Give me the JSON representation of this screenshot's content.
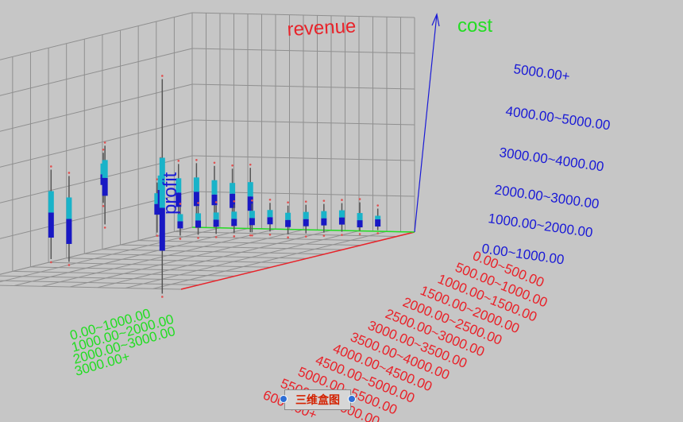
{
  "caption": "三维盒图",
  "chart_data": {
    "type": "box3d",
    "title": "",
    "x_axis": {
      "label": "revenue",
      "color": "#e8232a",
      "ticks": [
        "0.00~500.00",
        "500.00~1000.00",
        "1000.00~1500.00",
        "1500.00~2000.00",
        "2000.00~2500.00",
        "2500.00~3000.00",
        "3000.00~3500.00",
        "3500.00~4000.00",
        "4000.00~4500.00",
        "4500.00~5000.00",
        "5000.00~5500.00",
        "5500.00~6000.00",
        "6000.00+"
      ]
    },
    "y_axis": {
      "label": "cost",
      "color": "#22dd22",
      "ticks": [
        "0.00~1000.00",
        "1000.00~2000.00",
        "2000.00~3000.00",
        "3000.00+"
      ]
    },
    "z_axis": {
      "label": "profit",
      "color": "#1a1ad6",
      "range": [
        0,
        6000
      ],
      "ticks": [
        "0.00~1000.00",
        "1000.00~2000.00",
        "2000.00~3000.00",
        "3000.00~4000.00",
        "4000.00~5000.00",
        "5000.00+"
      ]
    },
    "grid": true,
    "colors": {
      "upper_box": "#19b3c9",
      "lower_box": "#1818c4",
      "whisker": "#555555",
      "outlier": "#e05050"
    },
    "boxes": [
      {
        "revenue": "0.00~500.00",
        "cost": "0.00~1000.00",
        "min": 100,
        "q1": 200,
        "median": 400,
        "q3": 500,
        "max": 700
      },
      {
        "revenue": "500.00~1000.00",
        "cost": "0.00~1000.00",
        "min": 200,
        "q1": 300,
        "median": 500,
        "q3": 700,
        "max": 1000
      },
      {
        "revenue": "1000.00~1500.00",
        "cost": "0.00~1000.00",
        "min": 300,
        "q1": 500,
        "median": 700,
        "q3": 900,
        "max": 1100
      },
      {
        "revenue": "1500.00~2000.00",
        "cost": "0.00~1000.00",
        "min": 400,
        "q1": 600,
        "median": 800,
        "q3": 1000,
        "max": 1200
      },
      {
        "revenue": "2000.00~2500.00",
        "cost": "0.00~1000.00",
        "min": 500,
        "q1": 700,
        "median": 900,
        "q3": 1100,
        "max": 1300
      },
      {
        "revenue": "2500.00~3000.00",
        "cost": "0.00~1000.00",
        "min": 600,
        "q1": 800,
        "median": 1000,
        "q3": 1200,
        "max": 1400
      },
      {
        "revenue": "3000.00~3500.00",
        "cost": "0.00~1000.00",
        "min": 800,
        "q1": 1000,
        "median": 1200,
        "q3": 1400,
        "max": 1600
      },
      {
        "revenue": "3500.00~4000.00",
        "cost": "0.00~1000.00",
        "min": 900,
        "q1": 1100,
        "median": 1300,
        "q3": 1500,
        "max": 1700
      },
      {
        "revenue": "4000.00~4500.00",
        "cost": "0.00~1000.00",
        "min": 1000,
        "q1": 1200,
        "median": 1400,
        "q3": 1600,
        "max": 1800
      },
      {
        "revenue": "4500.00~5000.00",
        "cost": "0.00~1000.00",
        "min": 1100,
        "q1": 1300,
        "median": 1500,
        "q3": 1700,
        "max": 1900
      },
      {
        "revenue": "5000.00~5500.00",
        "cost": "0.00~1000.00",
        "min": 1200,
        "q1": 1400,
        "median": 1600,
        "q3": 1800,
        "max": 2000
      },
      {
        "revenue": "5500.00~6000.00",
        "cost": "0.00~1000.00",
        "min": 1300,
        "q1": 1500,
        "median": 1700,
        "q3": 1900,
        "max": 2100
      },
      {
        "revenue": "2000.00~2500.00",
        "cost": "1000.00~2000.00",
        "min": 500,
        "q1": 1100,
        "median": 1500,
        "q3": 1900,
        "max": 2300
      },
      {
        "revenue": "2500.00~3000.00",
        "cost": "1000.00~2000.00",
        "min": 900,
        "q1": 1300,
        "median": 1700,
        "q3": 2000,
        "max": 2400
      },
      {
        "revenue": "3000.00~3500.00",
        "cost": "1000.00~2000.00",
        "min": 1000,
        "q1": 1500,
        "median": 1800,
        "q3": 2200,
        "max": 2600
      },
      {
        "revenue": "3500.00~4000.00",
        "cost": "1000.00~2000.00",
        "min": 1100,
        "q1": 1600,
        "median": 2000,
        "q3": 2400,
        "max": 2800
      },
      {
        "revenue": "4000.00~4500.00",
        "cost": "1000.00~2000.00",
        "min": 1300,
        "q1": 1700,
        "median": 2100,
        "q3": 2500,
        "max": 2900
      },
      {
        "revenue": "4500.00~5000.00",
        "cost": "1000.00~2000.00",
        "min": 1400,
        "q1": 1900,
        "median": 2300,
        "q3": 2700,
        "max": 3100
      },
      {
        "revenue": "5500.00~6000.00",
        "cost": "2000.00~3000.00",
        "min": 500,
        "q1": 1000,
        "median": 1700,
        "q3": 2300,
        "max": 2900
      },
      {
        "revenue": "6000.00+",
        "cost": "2000.00~3000.00",
        "min": 700,
        "q1": 1300,
        "median": 2000,
        "q3": 2600,
        "max": 3200
      },
      {
        "revenue": "4500.00~5000.00",
        "cost": "2000.00~3000.00",
        "min": 1300,
        "q1": 2100,
        "median": 2600,
        "q3": 3100,
        "max": 3500
      },
      {
        "revenue": "1500.00~2000.00",
        "cost": "3000.00+",
        "min": 300,
        "q1": 800,
        "median": 1100,
        "q3": 1400,
        "max": 1700
      },
      {
        "revenue": "3000.00~3500.00",
        "cost": "3000.00+",
        "min": 1500,
        "q1": 2000,
        "median": 2300,
        "q3": 2600,
        "max": 2900
      },
      {
        "revenue": "6000.00+",
        "cost": "0.00~1000.00",
        "min": -200,
        "q1": 1000,
        "median": 2200,
        "q3": 3600,
        "max": 5800
      },
      {
        "revenue": "6000.00+",
        "cost": "3000.00+",
        "min": 400,
        "q1": 800,
        "median": 1200,
        "q3": 1700,
        "max": 2100
      }
    ]
  }
}
